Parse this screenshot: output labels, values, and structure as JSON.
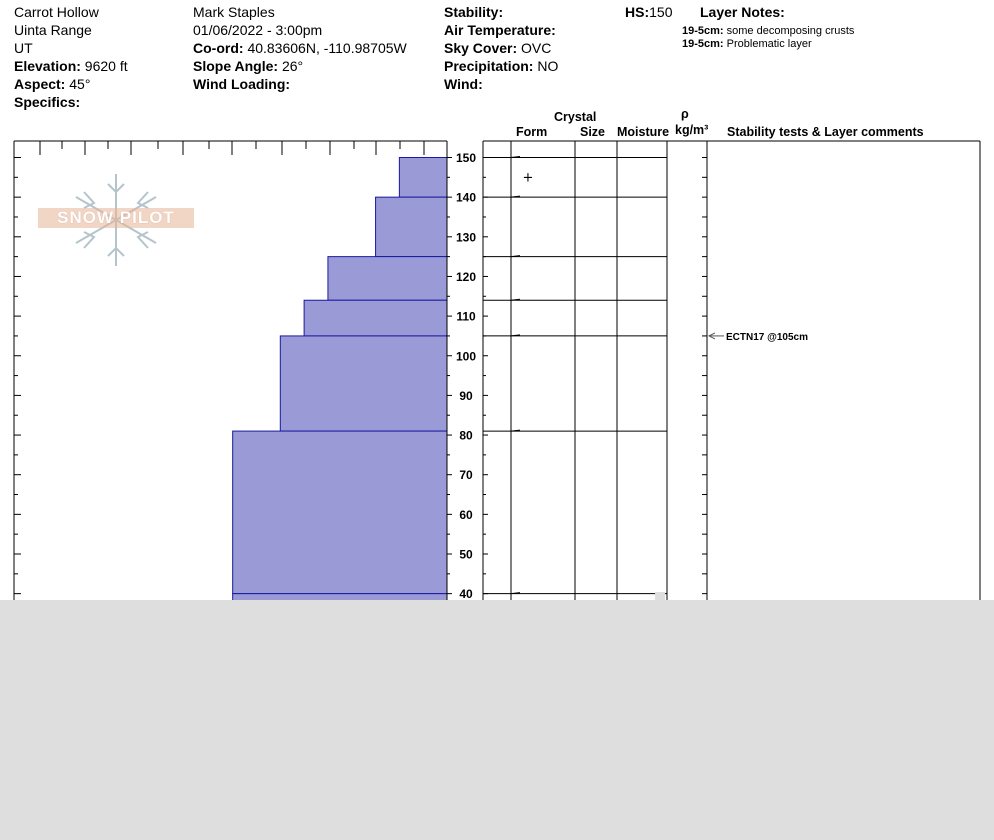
{
  "header": {
    "location": "Carrot Hollow",
    "range": "Uinta Range",
    "state": "UT",
    "elevation_label": "Elevation:",
    "elevation_value": "9620 ft",
    "aspect_label": "Aspect:",
    "aspect_value": "45°",
    "specifics_label": "Specifics:",
    "observer": "Mark Staples",
    "datetime": "01/06/2022 - 3:00pm",
    "coord_label": "Co-ord:",
    "coord_value": "40.83606N, -110.98705W",
    "slope_label": "Slope Angle:",
    "slope_value": "26°",
    "wind_loading_label": "Wind Loading:",
    "stability_label": "Stability:",
    "air_temp_label": "Air Temperature:",
    "sky_label": "Sky Cover:",
    "sky_value": "OVC",
    "precip_label": "Precipitation:",
    "precip_value": "NO",
    "wind_label": "Wind:",
    "hs_label": "HS:",
    "hs_value": "150",
    "layer_notes_label": "Layer Notes:"
  },
  "layer_notes": [
    {
      "range": "19-5cm:",
      "text": " some decomposing crusts"
    },
    {
      "range": "19-5cm:",
      "text": "Problematic layer"
    }
  ],
  "columns": {
    "crystal": "Crystal",
    "form": "Form",
    "size": "Size",
    "moisture": "Moisture",
    "rho": "ρ",
    "density_unit": "kg/m³",
    "comments": "Stability tests & Layer comments"
  },
  "logo": {
    "text": "SNOW PILOT"
  },
  "chart_data": {
    "type": "bar",
    "orientation": "horizontal-step",
    "y_axis": {
      "min": 37,
      "max": 150,
      "ticks": [
        150,
        140,
        130,
        120,
        110,
        100,
        90,
        80,
        70,
        60,
        50,
        40
      ]
    },
    "hardness_layers": [
      {
        "top": 150,
        "bottom": 140,
        "hardness_fraction": 0.11
      },
      {
        "top": 140,
        "bottom": 125,
        "hardness_fraction": 0.165
      },
      {
        "top": 125,
        "bottom": 114,
        "hardness_fraction": 0.275
      },
      {
        "top": 114,
        "bottom": 105,
        "hardness_fraction": 0.33
      },
      {
        "top": 105,
        "bottom": 81,
        "hardness_fraction": 0.385
      },
      {
        "top": 81,
        "bottom": 40,
        "hardness_fraction": 0.495
      },
      {
        "top": 40,
        "bottom": 37,
        "hardness_fraction": 0.495
      }
    ],
    "layer_boundaries": [
      150,
      140,
      125,
      114,
      105,
      81,
      40
    ],
    "crystal_marks": [
      {
        "depth": 145,
        "form": "+"
      }
    ],
    "stability_tests": [
      {
        "depth": 105,
        "label": "ECTN17 @105cm"
      }
    ],
    "colors": {
      "bar_fill": "#9a9ad6",
      "bar_edge": "#1a1aa0"
    }
  }
}
